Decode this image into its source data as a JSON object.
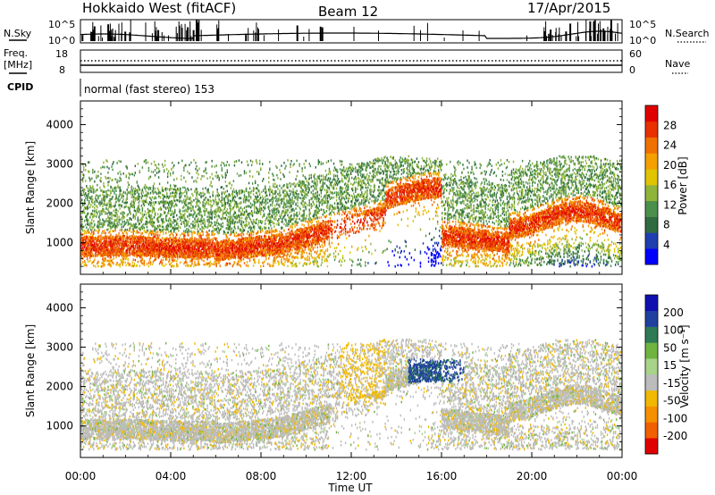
{
  "header": {
    "title": "Hokkaido West (fitACF)",
    "beam": "Beam 12",
    "date": "17/Apr/2015"
  },
  "top_panels": {
    "nsky_label": "N.Sky",
    "nsky_ticks": [
      "10^5",
      "10^0"
    ],
    "nsearch_label": "N.Search",
    "nsearch_ticks": [
      "10^5",
      "10^0"
    ],
    "freq_label": "Freq.",
    "freq_unit": "[MHz]",
    "freq_ticks": [
      "18",
      "8"
    ],
    "nave_label": "Nave",
    "nave_ticks": [
      "60",
      "0"
    ],
    "cpid_label": "CPID",
    "cpid_text": "normal (fast stereo) 153"
  },
  "colors": {
    "power_scale": [
      "#0000ff",
      "#1f3fb0",
      "#2f6b3f",
      "#4a8f4a",
      "#8fb43a",
      "#e0c400",
      "#f3a000",
      "#f07000",
      "#e83000",
      "#e00000"
    ],
    "velocity_scale": [
      "#1010b0",
      "#2040a0",
      "#2d7a55",
      "#6fb43f",
      "#a8d48a",
      "#bcbcbc",
      "#f0b800",
      "#f59000",
      "#f06000",
      "#e00000"
    ]
  },
  "chart_data": [
    {
      "type": "heatmap",
      "name": "power",
      "ylabel": "Slant Range [km]",
      "ylim": [
        200,
        4600
      ],
      "yticks": [
        1000,
        2000,
        3000,
        4000
      ],
      "xlim": [
        0,
        24
      ],
      "colorbar_label": "Power [dB]",
      "colorbar_ticks": [
        4,
        8,
        12,
        16,
        20,
        24,
        28
      ],
      "colorbar_range": [
        0,
        32
      ]
    },
    {
      "type": "heatmap",
      "name": "velocity",
      "ylabel": "Slant Range [km]",
      "ylim": [
        200,
        4600
      ],
      "yticks": [
        1000,
        2000,
        3000,
        4000
      ],
      "xlim": [
        0,
        24
      ],
      "colorbar_label": "Velocity [m s⁻¹]",
      "colorbar_ticks": [
        "200",
        "100",
        "50",
        "15",
        "-15",
        "-50",
        "-100",
        "-200"
      ]
    }
  ],
  "xaxis": {
    "label": "Time UT",
    "ticks": [
      {
        "t": 0,
        "label": "00:00"
      },
      {
        "t": 4,
        "label": "04:00"
      },
      {
        "t": 8,
        "label": "08:00"
      },
      {
        "t": 12,
        "label": "12:00"
      },
      {
        "t": 16,
        "label": "16:00"
      },
      {
        "t": 20,
        "label": "20:00"
      },
      {
        "t": 24,
        "label": "00:00"
      }
    ]
  }
}
